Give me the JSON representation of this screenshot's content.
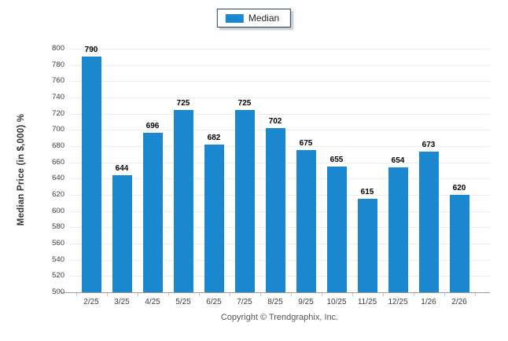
{
  "legend": {
    "label": "Median",
    "swatch_color": "#1b87ce"
  },
  "footer": {
    "copyright": "Copyright © Trendgraphix, Inc."
  },
  "chart_data": {
    "type": "bar",
    "title": "",
    "xlabel": "",
    "ylabel": "Median Price (in $,000) %",
    "categories": [
      "2/25",
      "3/25",
      "4/25",
      "5/25",
      "6/25",
      "7/25",
      "8/25",
      "9/25",
      "10/25",
      "11/25",
      "12/25",
      "1/26",
      "2/26"
    ],
    "series": [
      {
        "name": "Median",
        "color": "#1b87ce",
        "values": [
          790,
          644,
          696,
          725,
          682,
          725,
          702,
          675,
          655,
          615,
          654,
          673,
          620
        ]
      }
    ],
    "ylim": [
      500,
      800
    ],
    "ytick_step": 20,
    "grid": "horizontal",
    "gridline_color": "#ececec",
    "legend_position": "top-center",
    "bar_labels": true
  }
}
